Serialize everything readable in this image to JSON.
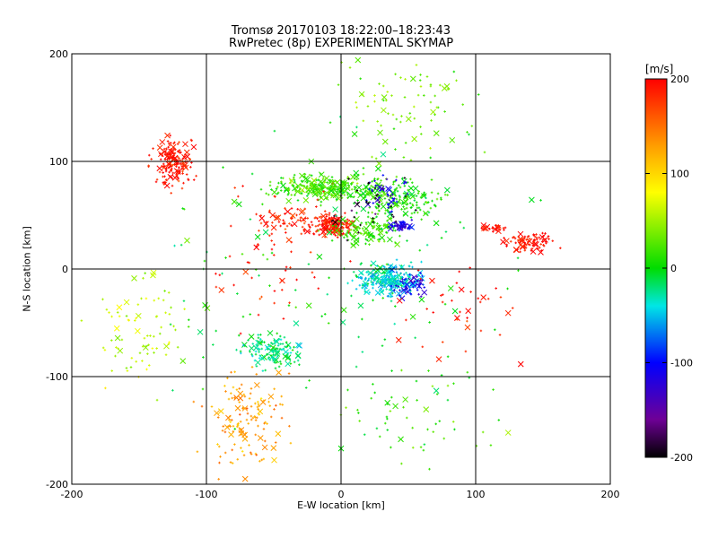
{
  "chart_data": {
    "type": "scatter",
    "title": "Tromsø 20170103 18:22:00–18:23:43",
    "subtitle": "RwPretec (8p) EXPERIMENTAL SKYMAP",
    "xlabel": "E-W location [km]",
    "ylabel": "N-S location [km]",
    "xlim": [
      -200,
      200
    ],
    "ylim": [
      -200,
      200
    ],
    "xticks": [
      -200,
      -100,
      0,
      100,
      200
    ],
    "yticks": [
      -200,
      -100,
      0,
      100,
      200
    ],
    "grid": true,
    "colorbar": {
      "label": "[m/s]",
      "range": [
        -200,
        200
      ],
      "ticks": [
        200,
        100,
        0,
        -100,
        -200
      ],
      "colormap": "rainbow (black-purple-blue-cyan-green-yellow-red)"
    },
    "markers": {
      "small_dot": "+",
      "large": "x"
    },
    "clusters": [
      {
        "name": "north-west red",
        "x": -125,
        "y": 100,
        "spread": [
          12,
          18
        ],
        "value": 190,
        "count": 170
      },
      {
        "name": "north green band",
        "x": -10,
        "y": 75,
        "spread": [
          35,
          10
        ],
        "value": 20,
        "count": 320
      },
      {
        "name": "north green band east",
        "x": 45,
        "y": 65,
        "spread": [
          25,
          15
        ],
        "value": 10,
        "count": 170
      },
      {
        "name": "central red",
        "x": -5,
        "y": 40,
        "spread": [
          12,
          8
        ],
        "value": 190,
        "count": 170
      },
      {
        "name": "central green",
        "x": 20,
        "y": 35,
        "spread": [
          20,
          10
        ],
        "value": 20,
        "count": 100
      },
      {
        "name": "blue patch",
        "x": 45,
        "y": 40,
        "spread": [
          7,
          4
        ],
        "value": -120,
        "count": 50
      },
      {
        "name": "north-east blue",
        "x": 35,
        "y": 70,
        "spread": [
          15,
          15
        ],
        "value": -110,
        "count": 40
      },
      {
        "name": "dark purple points",
        "x": 20,
        "y": 60,
        "spread": [
          25,
          25
        ],
        "value": -195,
        "count": 35
      },
      {
        "name": "mid red band",
        "x": -35,
        "y": 45,
        "spread": [
          25,
          10
        ],
        "value": 185,
        "count": 60
      },
      {
        "name": "cyan south-east",
        "x": 35,
        "y": -10,
        "spread": [
          20,
          12
        ],
        "value": -40,
        "count": 250
      },
      {
        "name": "blue south-east",
        "x": 50,
        "y": -15,
        "spread": [
          15,
          10
        ],
        "value": -110,
        "count": 50
      },
      {
        "name": "east red",
        "x": 140,
        "y": 25,
        "spread": [
          15,
          8
        ],
        "value": 195,
        "count": 90
      },
      {
        "name": "east red head",
        "x": 115,
        "y": 38,
        "spread": [
          10,
          3
        ],
        "value": 195,
        "count": 25
      },
      {
        "name": "southwest cyan-green",
        "x": -50,
        "y": -75,
        "spread": [
          20,
          15
        ],
        "value": -20,
        "count": 130
      },
      {
        "name": "south yellow-orange",
        "x": -70,
        "y": -140,
        "spread": [
          25,
          40
        ],
        "value": 130,
        "count": 140
      },
      {
        "name": "west mixed",
        "x": -150,
        "y": -60,
        "spread": [
          30,
          40
        ],
        "value": 60,
        "count": 80
      },
      {
        "name": "north-east scattered",
        "x": 50,
        "y": 150,
        "spread": [
          40,
          40
        ],
        "value": 40,
        "count": 80
      },
      {
        "name": "red scattered east",
        "x": 90,
        "y": -40,
        "spread": [
          40,
          40
        ],
        "value": 190,
        "count": 40
      },
      {
        "name": "southeast green",
        "x": 60,
        "y": -140,
        "spread": [
          60,
          40
        ],
        "value": 20,
        "count": 50
      },
      {
        "name": "red central scatter",
        "x": -50,
        "y": 20,
        "spread": [
          40,
          60
        ],
        "value": 190,
        "count": 60
      },
      {
        "name": "background scatter",
        "x": 0,
        "y": 0,
        "spread": [
          120,
          120
        ],
        "value": 0,
        "count": 150
      }
    ]
  }
}
